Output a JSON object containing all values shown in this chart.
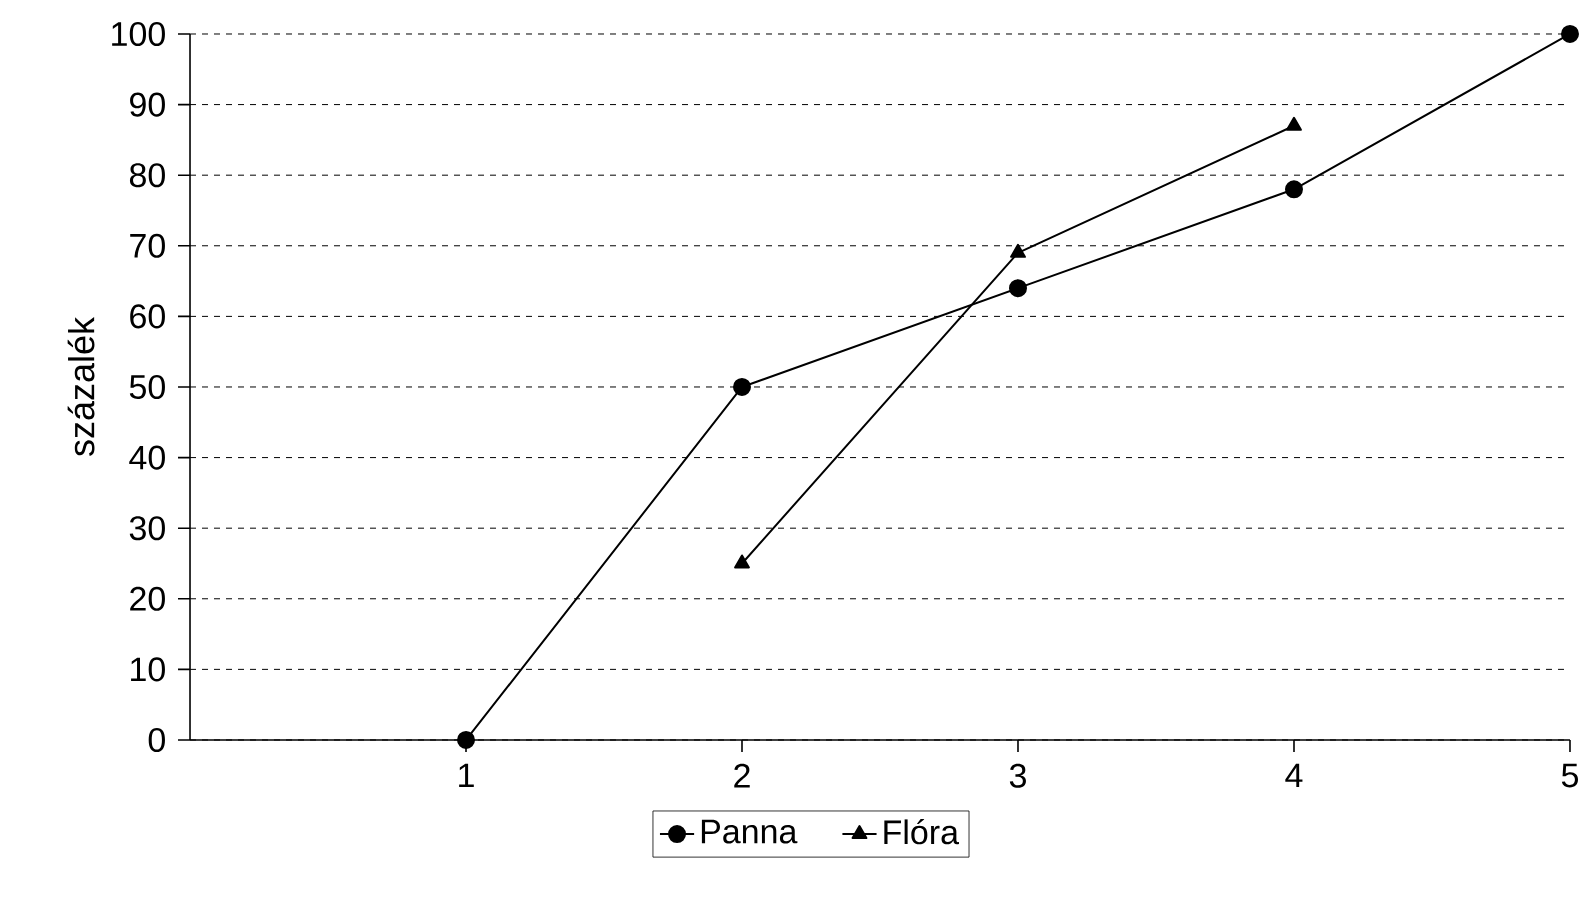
{
  "chart_data": {
    "type": "line",
    "ylabel": "százalék",
    "xlim": [
      0,
      5
    ],
    "xticks": [
      1,
      2,
      3,
      4,
      5
    ],
    "ylim": [
      0,
      100
    ],
    "yticks": [
      0,
      10,
      20,
      30,
      40,
      50,
      60,
      70,
      80,
      90,
      100
    ],
    "grid": "y",
    "legend": "bottom",
    "line_style": "solid",
    "series": [
      {
        "name": "Panna",
        "color": "#000000",
        "marker": "circle",
        "x": [
          1,
          2,
          3,
          4,
          5
        ],
        "values": [
          0,
          50,
          64,
          78,
          100
        ]
      },
      {
        "name": "Flóra",
        "color": "#000000",
        "marker": "triangle",
        "x": [
          2,
          3,
          4
        ],
        "values": [
          25,
          69,
          87
        ]
      }
    ]
  }
}
